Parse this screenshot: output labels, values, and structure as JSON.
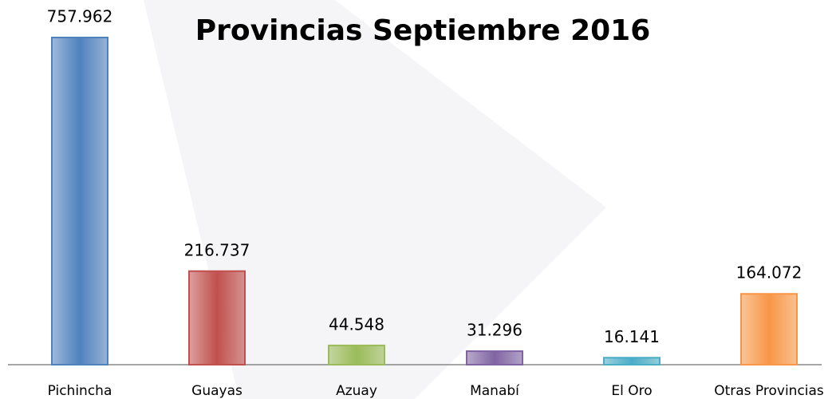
{
  "chart_data": {
    "type": "bar",
    "title": "Provincias Septiembre 2016",
    "categories": [
      "Pichincha",
      "Guayas",
      "Azuay",
      "Manabí",
      "El Oro",
      "Otras Provincias"
    ],
    "values": [
      757962,
      216737,
      44548,
      31296,
      16141,
      164072
    ],
    "value_labels": [
      "757.962",
      "216.737",
      "44.548",
      "31.296",
      "16.141",
      "164.072"
    ],
    "colors": [
      "#4f81bd",
      "#c0504d",
      "#9bbb59",
      "#8064a2",
      "#4bacc6",
      "#f79646"
    ]
  }
}
